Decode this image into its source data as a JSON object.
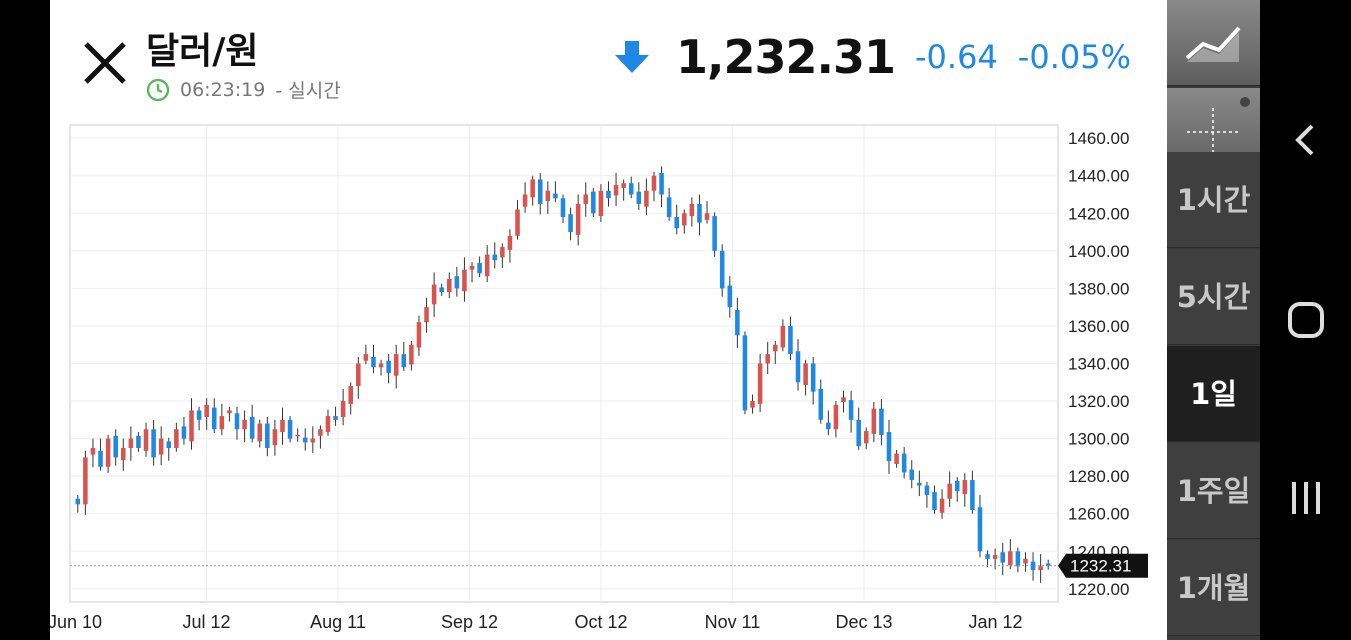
{
  "header": {
    "title": "달러/원",
    "time": "06:23:19",
    "time_suffix": "- 실시간",
    "price": "1,232.31",
    "change": "-0.64",
    "change_pct": "-0.05%",
    "colors": {
      "down": "#1e88e5",
      "up": "#d9534f",
      "clock": "#5cb85c"
    }
  },
  "side_panel": {
    "tools": [
      "line-chart-icon",
      "crosshair-icon"
    ],
    "periods": [
      {
        "label": "1시간",
        "active": false
      },
      {
        "label": "5시간",
        "active": false
      },
      {
        "label": "1일",
        "active": true
      },
      {
        "label": "1주일",
        "active": false
      },
      {
        "label": "1개월",
        "active": false
      }
    ]
  },
  "nav_bar": [
    "back-icon",
    "home-icon",
    "recents-icon"
  ],
  "chart_data": {
    "type": "candlestick",
    "y_ticks": [
      "1460.00",
      "1440.00",
      "1420.00",
      "1400.00",
      "1380.00",
      "1360.00",
      "1340.00",
      "1320.00",
      "1300.00",
      "1280.00",
      "1260.00",
      "1240.00",
      "1220.00"
    ],
    "ylim": [
      1213,
      1467
    ],
    "x_ticks": [
      "Jun 10",
      "Jul 12",
      "Aug 11",
      "Sep 12",
      "Oct 12",
      "Nov 11",
      "Dec 13",
      "Jan 12"
    ],
    "last_price_label": "1232.31",
    "last_price": 1232.31,
    "grid": true,
    "close_series": [
      1265,
      1290,
      1295,
      1285,
      1300,
      1290,
      1295,
      1300,
      1295,
      1305,
      1290,
      1300,
      1295,
      1305,
      1300,
      1315,
      1310,
      1318,
      1305,
      1312,
      1315,
      1305,
      1310,
      1300,
      1308,
      1295,
      1305,
      1310,
      1300,
      1302,
      1298,
      1300,
      1305,
      1312,
      1310,
      1320,
      1328,
      1340,
      1345,
      1338,
      1340,
      1335,
      1345,
      1338,
      1350,
      1362,
      1370,
      1382,
      1378,
      1385,
      1380,
      1390,
      1392,
      1388,
      1398,
      1395,
      1402,
      1408,
      1422,
      1430,
      1438,
      1425,
      1432,
      1428,
      1418,
      1410,
      1425,
      1430,
      1420,
      1432,
      1428,
      1435,
      1436,
      1430,
      1425,
      1432,
      1440,
      1430,
      1418,
      1412,
      1420,
      1425,
      1415,
      1420,
      1400,
      1380,
      1370,
      1355,
      1315,
      1320,
      1340,
      1345,
      1350,
      1360,
      1345,
      1330,
      1340,
      1325,
      1310,
      1305,
      1318,
      1322,
      1310,
      1296,
      1304,
      1316,
      1302,
      1288,
      1292,
      1282,
      1278,
      1275,
      1270,
      1262,
      1268,
      1276,
      1272,
      1278,
      1262,
      1240,
      1236,
      1238,
      1234,
      1240,
      1232,
      1236,
      1230,
      1232,
      1232.31
    ],
    "colors": {
      "up": "#d9534f",
      "down": "#1e88e5"
    }
  }
}
